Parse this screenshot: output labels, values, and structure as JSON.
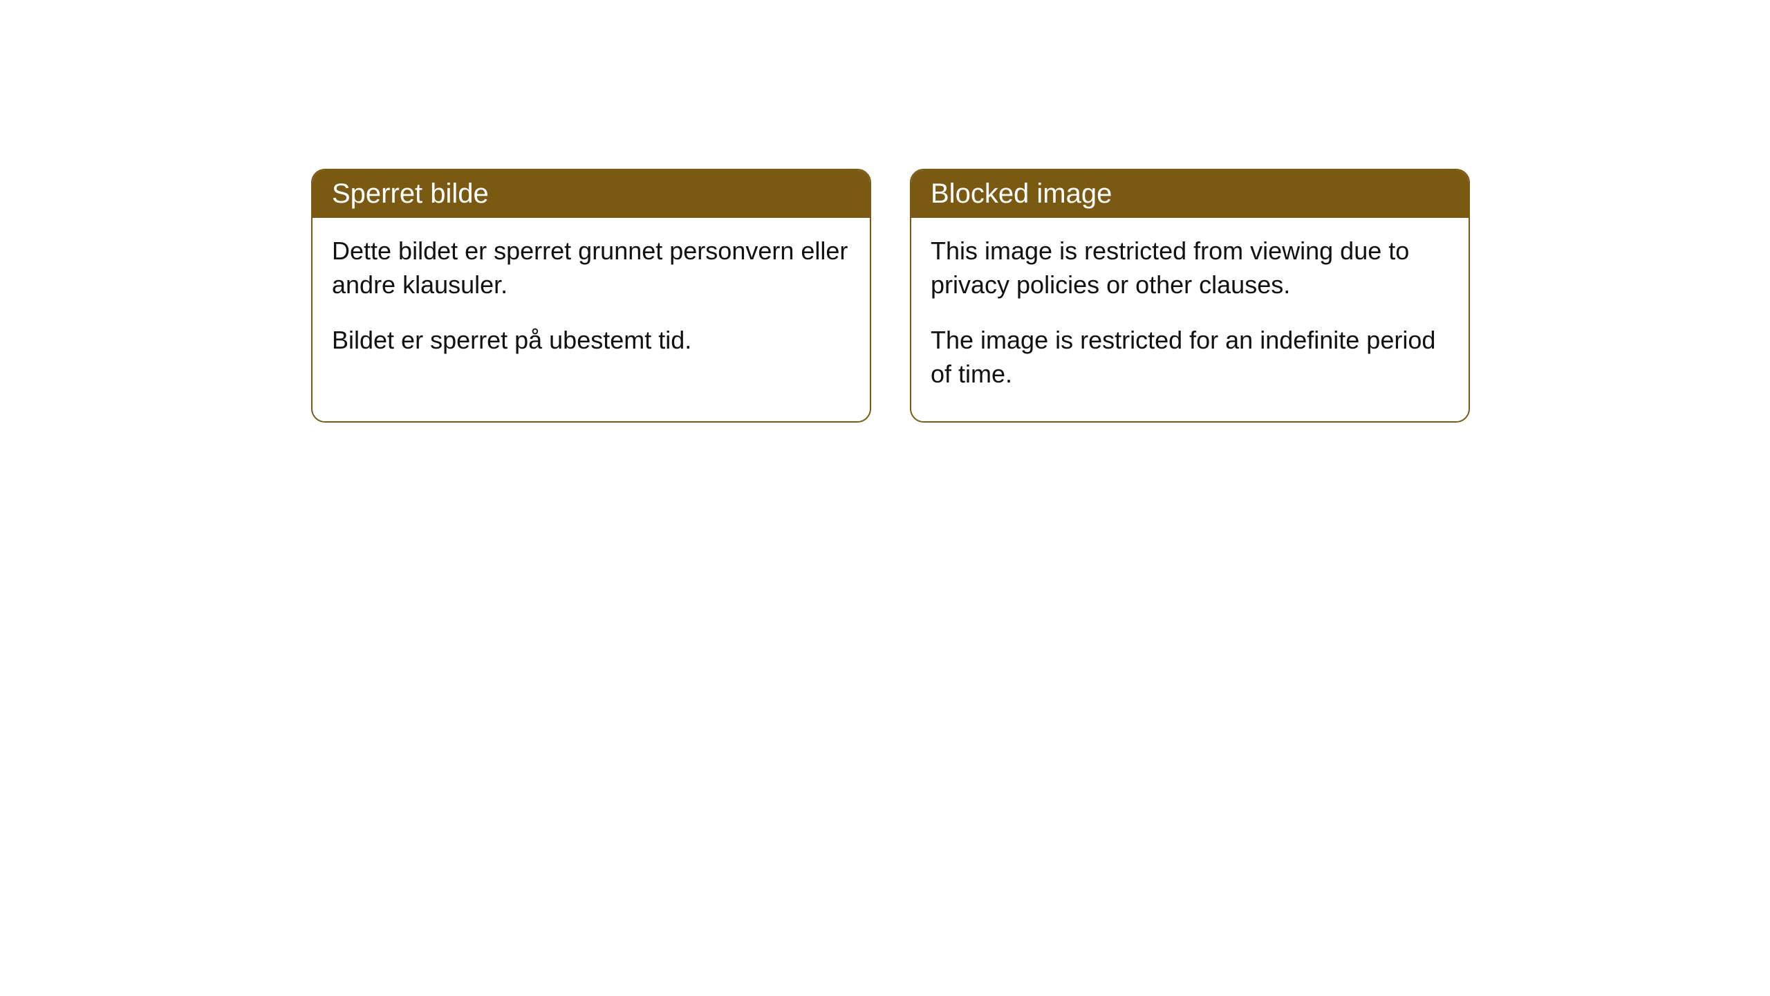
{
  "cards": [
    {
      "title": "Sperret bilde",
      "para1": "Dette bildet er sperret grunnet personvern eller andre klausuler.",
      "para2": "Bildet er sperret på ubestemt tid."
    },
    {
      "title": "Blocked image",
      "para1": "This image is restricted from viewing due to privacy policies or other clauses.",
      "para2": "The image is restricted for an indefinite period of time."
    }
  ],
  "colors": {
    "header_bg": "#7a5a12",
    "header_text": "#ffffff",
    "border": "#7a5a12",
    "body_text": "#111111",
    "background": "#ffffff"
  },
  "typography": {
    "header_fontsize": 40,
    "body_fontsize": 36
  }
}
